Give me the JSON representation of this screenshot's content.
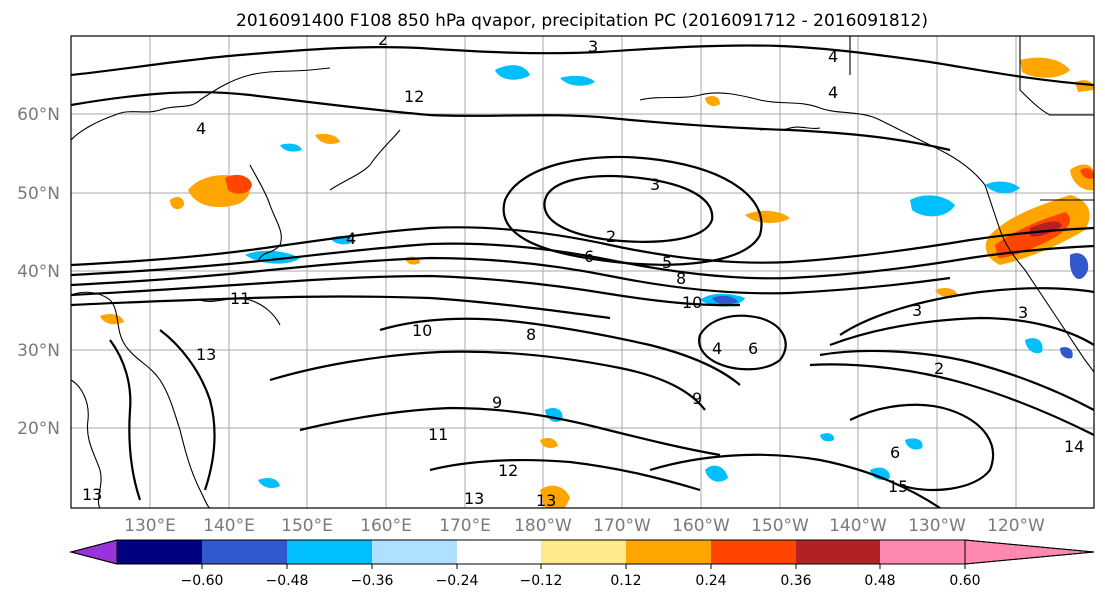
{
  "title": "2016091400 F108 850 hPa qvapor, precipitation PC (2016091712 - 2016091812)",
  "lat_labels": [
    "60°N",
    "50°N",
    "40°N",
    "30°N",
    "20°N"
  ],
  "lon_labels": [
    "130°E",
    "140°E",
    "150°E",
    "160°E",
    "170°E",
    "180°W",
    "170°W",
    "160°W",
    "150°W",
    "140°W",
    "130°W",
    "120°W"
  ],
  "colorbar": {
    "colors": [
      "#9a33d9",
      "#00007f",
      "#3158cc",
      "#00bfff",
      "#b0e0ff",
      "#ffffff",
      "#ffe98a",
      "#ffa500",
      "#ff4500",
      "#b22222",
      "#ff88b0"
    ],
    "ticks": [
      "−0.60",
      "−0.48",
      "−0.36",
      "−0.24",
      "−0.12",
      "0.12",
      "0.24",
      "0.36",
      "0.48",
      "0.60"
    ]
  },
  "contour_labels": [
    "2",
    "3",
    "4",
    "4",
    "2",
    "3",
    "4",
    "5",
    "6",
    "8",
    "10",
    "10",
    "8",
    "11",
    "13",
    "13",
    "12",
    "9",
    "11",
    "4",
    "6",
    "2",
    "3",
    "3",
    "14",
    "15",
    "13",
    "12",
    "4",
    "9",
    "6",
    "13"
  ]
}
